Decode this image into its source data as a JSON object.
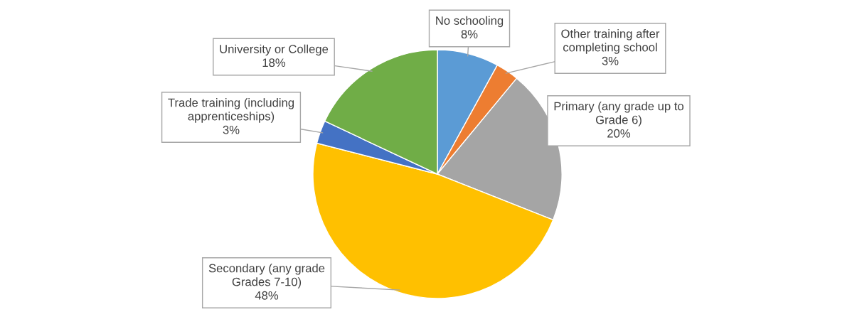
{
  "chart_data": {
    "type": "pie",
    "categories": [
      "No schooling",
      "Other training after\ncompleting school",
      "Primary (any grade up to\nGrade 6)",
      "Secondary (any grade\nGrades 7-10)",
      "Trade training (including\napprenticeships)",
      "University or College"
    ],
    "values": [
      8,
      3,
      20,
      48,
      3,
      18
    ],
    "value_labels": [
      "8%",
      "3%",
      "20%",
      "48%",
      "3%",
      "18%"
    ],
    "colors": [
      "#5b9bd5",
      "#ed7d31",
      "#a5a5a5",
      "#ffc000",
      "#4472c4",
      "#70ad47"
    ]
  }
}
